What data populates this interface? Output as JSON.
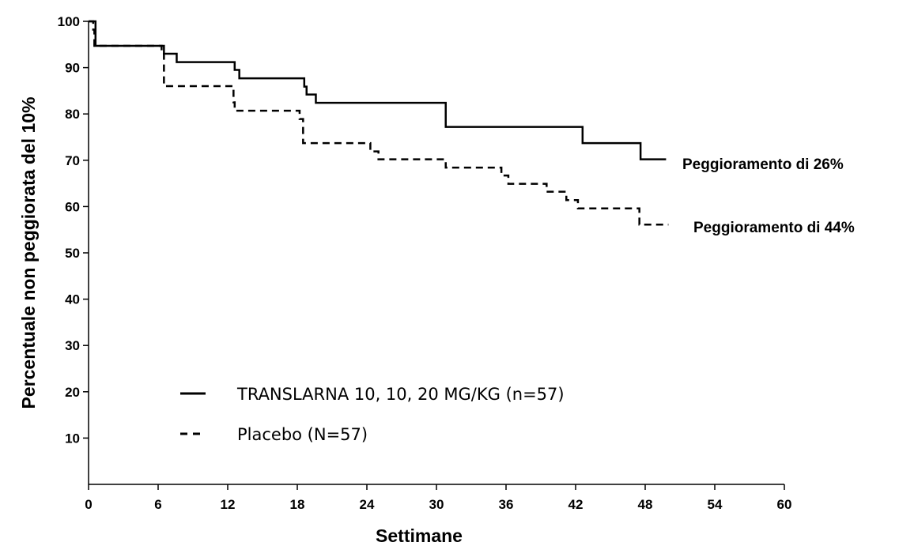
{
  "chart_data": {
    "type": "line",
    "title": "",
    "xlabel": "Settimane",
    "ylabel": "Percentuale non peggiorata del 10%",
    "xlim": [
      0,
      60
    ],
    "ylim": [
      0,
      100
    ],
    "xticks": [
      0,
      6,
      12,
      18,
      24,
      30,
      36,
      42,
      48,
      54,
      60
    ],
    "yticks": [
      10,
      20,
      30,
      40,
      50,
      60,
      70,
      80,
      90,
      100
    ],
    "grid": false,
    "legend_position": "bottom-left",
    "series": [
      {
        "name": "TRANSLARNA 10, 10, 20 MG/KG (n=57)",
        "style": "solid",
        "color": "#000000",
        "step": true,
        "x": [
          0,
          0.5,
          0.6,
          6.4,
          6.5,
          7.6,
          12.6,
          13.0,
          18.6,
          18.8,
          19.6,
          30.8,
          42.6,
          47.6,
          49.8
        ],
        "y": [
          100,
          100,
          94.7,
          94.7,
          93.0,
          91.2,
          89.5,
          87.7,
          85.9,
          84.2,
          82.4,
          77.2,
          73.7,
          70.2,
          70.2
        ]
      },
      {
        "name": "Placebo (N=57)",
        "style": "dashed",
        "color": "#000000",
        "step": true,
        "x": [
          0,
          0.3,
          0.4,
          0.5,
          6.3,
          6.5,
          12.5,
          12.6,
          18.2,
          18.5,
          24.0,
          24.3,
          25.0,
          30.5,
          30.8,
          35.4,
          35.6,
          36.2,
          39.3,
          39.5,
          41.0,
          41.2,
          42.2,
          47.5,
          50.0
        ],
        "y": [
          100,
          100,
          98.2,
          94.7,
          93.0,
          86.0,
          82.5,
          80.7,
          78.9,
          73.7,
          73.7,
          71.9,
          70.2,
          70.2,
          68.4,
          68.4,
          66.7,
          64.9,
          64.9,
          63.2,
          63.2,
          61.4,
          59.6,
          56.1,
          56.1
        ]
      }
    ],
    "annotations": [
      {
        "text": "Peggioramento di 26%",
        "x": 51.5,
        "y": 69.5
      },
      {
        "text": "Peggioramento di 44%",
        "x": 52.0,
        "y": 55.5
      }
    ]
  }
}
